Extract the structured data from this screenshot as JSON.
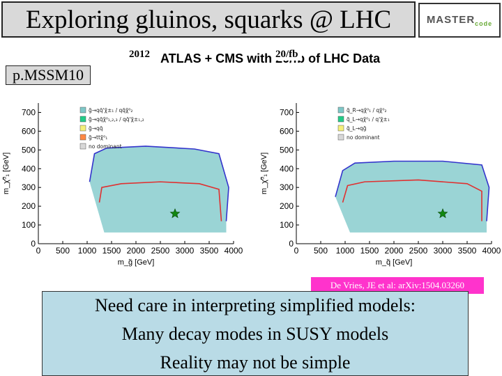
{
  "slide": {
    "title": "Exploring gluinos, squarks @ LHC",
    "logo": {
      "text": "MASTER",
      "sub": "code"
    },
    "header": "ATLAS + CMS with 20/fb of LHC Data",
    "year_label": "2012",
    "lumi_label": "20/fb",
    "model_label": "p.MSSM10",
    "citation": "De Vries, JE et al: arXiv:1504.03260",
    "message_lines": [
      "Need care in interpreting simplified models:",
      "Many decay modes in SUSY models",
      "Reality may not be simple"
    ]
  },
  "chart_data": [
    {
      "type": "scatter",
      "title": "",
      "xlabel": "m_g̃ [GeV]",
      "ylabel": "m_χ̃⁰₁ [GeV]",
      "xlim": [
        0,
        4000
      ],
      "ylim": [
        0,
        750
      ],
      "xticks": [
        0,
        500,
        1000,
        1500,
        2000,
        2500,
        3000,
        3500,
        4000
      ],
      "yticks": [
        0,
        100,
        200,
        300,
        400,
        500,
        600,
        700
      ],
      "legend_position": "top-left",
      "legend": [
        {
          "label": "g̃→qq̄'χ̃±₁ / qq̄χ̃⁰₂",
          "color": "#7ec8c8"
        },
        {
          "label": "g̃→qq̄χ̃⁰₁,₂,₃ / qq̄'χ̃±₁,₂",
          "color": "#22cc88"
        },
        {
          "label": "g̃→qq̄",
          "color": "#f5f07a"
        },
        {
          "label": "g̃→ttχ̃⁰₁",
          "color": "#ff8844"
        },
        {
          "label": "no dominant",
          "color": "#d8d8d8"
        }
      ],
      "best_fit": {
        "x": 2800,
        "y": 160
      },
      "bands": [
        {
          "name": "blue",
          "color": "#3333cc",
          "points": [
            [
              1050,
              330
            ],
            [
              1150,
              480
            ],
            [
              1400,
              510
            ],
            [
              2200,
              520
            ],
            [
              3200,
              505
            ],
            [
              3700,
              480
            ],
            [
              3900,
              300
            ],
            [
              3850,
              120
            ]
          ]
        },
        {
          "name": "red",
          "color": "#e03030",
          "points": [
            [
              1250,
              220
            ],
            [
              1300,
              300
            ],
            [
              1700,
              320
            ],
            [
              2500,
              330
            ],
            [
              3300,
              320
            ],
            [
              3700,
              290
            ],
            [
              3750,
              120
            ]
          ]
        }
      ]
    },
    {
      "type": "scatter",
      "title": "",
      "xlabel": "m_q̃ [GeV]",
      "ylabel": "m_χ̃⁰₁ [GeV]",
      "xlim": [
        0,
        4000
      ],
      "ylim": [
        0,
        750
      ],
      "xticks": [
        0,
        500,
        1000,
        1500,
        2000,
        2500,
        3000,
        3500,
        4000
      ],
      "yticks": [
        0,
        100,
        200,
        300,
        400,
        500,
        600,
        700
      ],
      "legend_position": "top-left",
      "legend": [
        {
          "label": "q̃_R→qχ̃⁰₁ / qχ̃⁰₂",
          "color": "#7ec8c8"
        },
        {
          "label": "q̃_L→qχ̃⁰₁ / q'χ̃±₁",
          "color": "#22cc88"
        },
        {
          "label": "q̃_L→qg̃",
          "color": "#f5f07a"
        },
        {
          "label": "no dominant",
          "color": "#d8d8d8"
        }
      ],
      "best_fit": {
        "x": 3000,
        "y": 160
      },
      "bands": [
        {
          "name": "blue",
          "color": "#3333cc",
          "points": [
            [
              800,
              250
            ],
            [
              950,
              390
            ],
            [
              1200,
              430
            ],
            [
              2000,
              440
            ],
            [
              3000,
              440
            ],
            [
              3800,
              420
            ],
            [
              3950,
              300
            ],
            [
              3900,
              120
            ]
          ]
        },
        {
          "name": "red",
          "color": "#e03030",
          "points": [
            [
              950,
              220
            ],
            [
              1050,
              310
            ],
            [
              1400,
              330
            ],
            [
              2500,
              340
            ],
            [
              3500,
              320
            ],
            [
              3800,
              280
            ],
            [
              3800,
              120
            ]
          ]
        }
      ]
    }
  ]
}
